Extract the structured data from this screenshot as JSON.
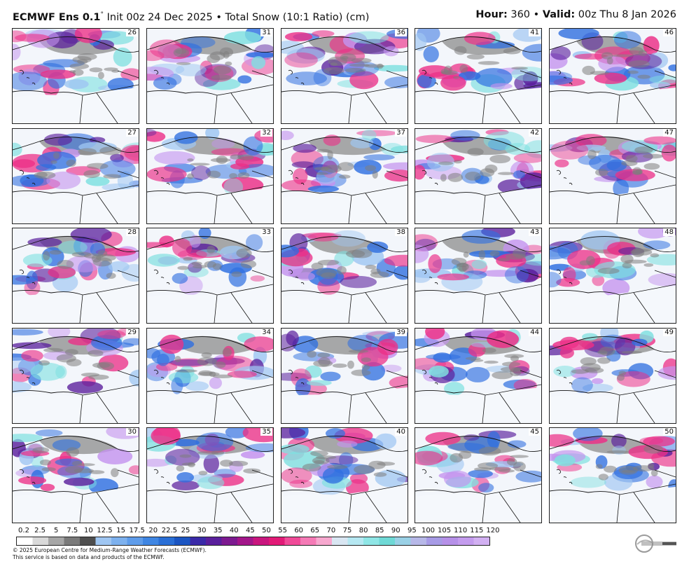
{
  "header": {
    "model": "ECMWF Ens 0.1",
    "degree": "°",
    "init": " Init 00z 24 Dec 2025",
    "sep": " • ",
    "field": "Total Snow (10:1 Ratio) (cm)",
    "hour_label": "Hour:",
    "hour_value": " 360",
    "valid_label": "Valid:",
    "valid_value": " 00z Thu 8 Jan 2026"
  },
  "members": [
    [
      "26",
      "31",
      "36",
      "41",
      "46"
    ],
    [
      "27",
      "32",
      "37",
      "42",
      "47"
    ],
    [
      "28",
      "33",
      "38",
      "43",
      "48"
    ],
    [
      "29",
      "34",
      "39",
      "44",
      "49"
    ],
    [
      "30",
      "35",
      "40",
      "45",
      "50"
    ]
  ],
  "legend": {
    "ticks": [
      "0.2",
      "2.5",
      "5",
      "7.5",
      "10",
      "12.5",
      "15",
      "17.5",
      "20",
      "22.5",
      "25",
      "30",
      "35",
      "40",
      "45",
      "50",
      "55",
      "60",
      "65",
      "70",
      "75",
      "80",
      "85",
      "90",
      "95",
      "100",
      "105",
      "110",
      "115",
      "120"
    ],
    "colors": [
      "#ffffff",
      "#d9d9d9",
      "#a6a6a6",
      "#7a7a7a",
      "#4e4e4e",
      "#9fc6f2",
      "#7db1ee",
      "#5e9cea",
      "#3f86e3",
      "#2a6fd6",
      "#1b55c2",
      "#3a2aa8",
      "#5a1f9c",
      "#7d1a90",
      "#a3168a",
      "#c9167e",
      "#e21a77",
      "#f04a98",
      "#f57ab6",
      "#f7a8cf",
      "#d9e6f2",
      "#b6e8f2",
      "#8fe6e6",
      "#6fd9d6",
      "#9ad1e6",
      "#b7b8e8",
      "#a79be6",
      "#b690e8",
      "#c49cee",
      "#d2b0f2"
    ],
    "accent_pink": "#ec2f87",
    "accent_blue": "#2f6fe0",
    "accent_grey": "#7d7d7d"
  },
  "footer": {
    "line1": "© 2025 European Centre for Medium-Range Weather Forecasts (ECMWF).",
    "line2": "This service is based on data and products of the ECMWF.",
    "logo_icon": "weatherbell-logo-icon"
  }
}
